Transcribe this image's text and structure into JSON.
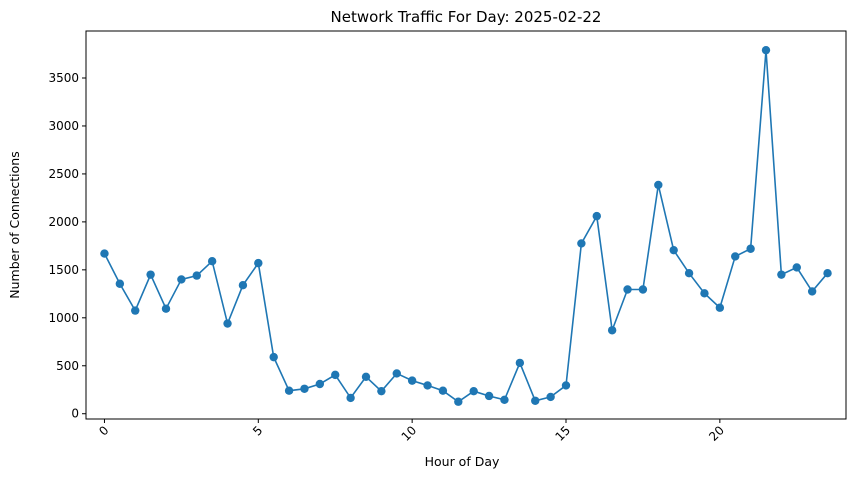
{
  "chart_data": {
    "type": "line",
    "title": "Network Traffic For Day: 2025-02-22",
    "xlabel": "Hour of Day",
    "ylabel": "Number of Connections",
    "xlim": [
      -0.6,
      24.1
    ],
    "ylim": [
      -55,
      3990
    ],
    "xticks": [
      0,
      5,
      10,
      15,
      20
    ],
    "yticks": [
      0,
      500,
      1000,
      1500,
      2000,
      2500,
      3000,
      3500
    ],
    "grid": false,
    "legend": "none",
    "x_tick_rotation": 45,
    "color": "#1f77b4",
    "series": [
      {
        "x": [
          0,
          0.5,
          1,
          1.5,
          2,
          2.5,
          3,
          3.5,
          4,
          4.5,
          5,
          5.5,
          6,
          6.5,
          7,
          7.5,
          8,
          8.5,
          9,
          9.5,
          10,
          10.5,
          11,
          11.5,
          12,
          12.5,
          13,
          13.5,
          14,
          14.5,
          15,
          15.5,
          16,
          16.5,
          17,
          17.5,
          18,
          18.5,
          19,
          19.5,
          20,
          20.5,
          21,
          21.5,
          22,
          22.5,
          23,
          23.5
        ],
        "values": [
          1670,
          1355,
          1075,
          1450,
          1095,
          1400,
          1440,
          1590,
          940,
          1340,
          1570,
          590,
          240,
          260,
          310,
          405,
          165,
          385,
          235,
          420,
          345,
          295,
          240,
          125,
          235,
          185,
          145,
          530,
          135,
          175,
          295,
          1775,
          2060,
          870,
          1295,
          1295,
          2385,
          1705,
          1465,
          1255,
          1105,
          1640,
          1720,
          3790,
          1450,
          1525,
          1275,
          1465
        ]
      }
    ]
  }
}
